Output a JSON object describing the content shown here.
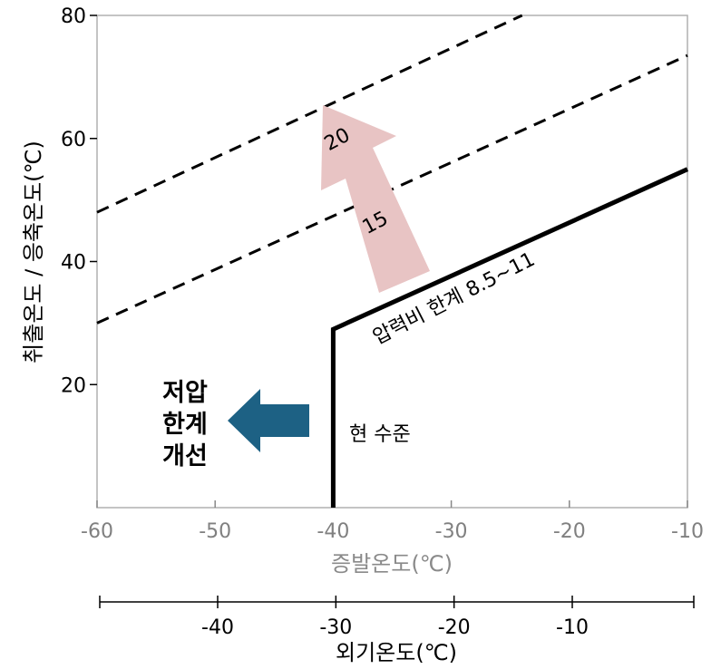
{
  "chart_data": {
    "type": "line",
    "title": "",
    "xlabel": "증발온도(℃)",
    "ylabel": "취출온도 / 응축온도(℃)",
    "xlim": [
      -60,
      -10
    ],
    "ylim": [
      0,
      80
    ],
    "x_ticks": [
      "-60",
      "-50",
      "-40",
      "-30",
      "-20",
      "-10"
    ],
    "y_ticks": [
      "80",
      "60",
      "40",
      "20"
    ],
    "secondary_x_axis": {
      "label": "외기온도(℃)",
      "ticks": [
        "-40",
        "-30",
        "-20",
        "-10"
      ]
    },
    "series": [
      {
        "style": "dashed",
        "points": [
          {
            "x": -60,
            "y": 48
          },
          {
            "x": -24,
            "y": 80
          }
        ]
      },
      {
        "style": "dashed",
        "points": [
          {
            "x": -60,
            "y": 30
          },
          {
            "x": -10,
            "y": 73.5
          }
        ]
      },
      {
        "style": "solid",
        "points": [
          {
            "x": -40,
            "y": 0
          },
          {
            "x": -40,
            "y": 29
          },
          {
            "x": -10,
            "y": 55
          }
        ]
      }
    ],
    "annotations": {
      "arrow_up_label_top": "20",
      "arrow_up_label_mid": "15",
      "boundary_label": "압력비 한계 8.5~11",
      "current_level_label": "현 수준",
      "improvement_label_line1": "저압",
      "improvement_label_line2": "한계",
      "improvement_label_line3": "개선"
    },
    "colors": {
      "up_arrow": "#e8c4c4",
      "left_arrow": "#1d6184"
    }
  }
}
